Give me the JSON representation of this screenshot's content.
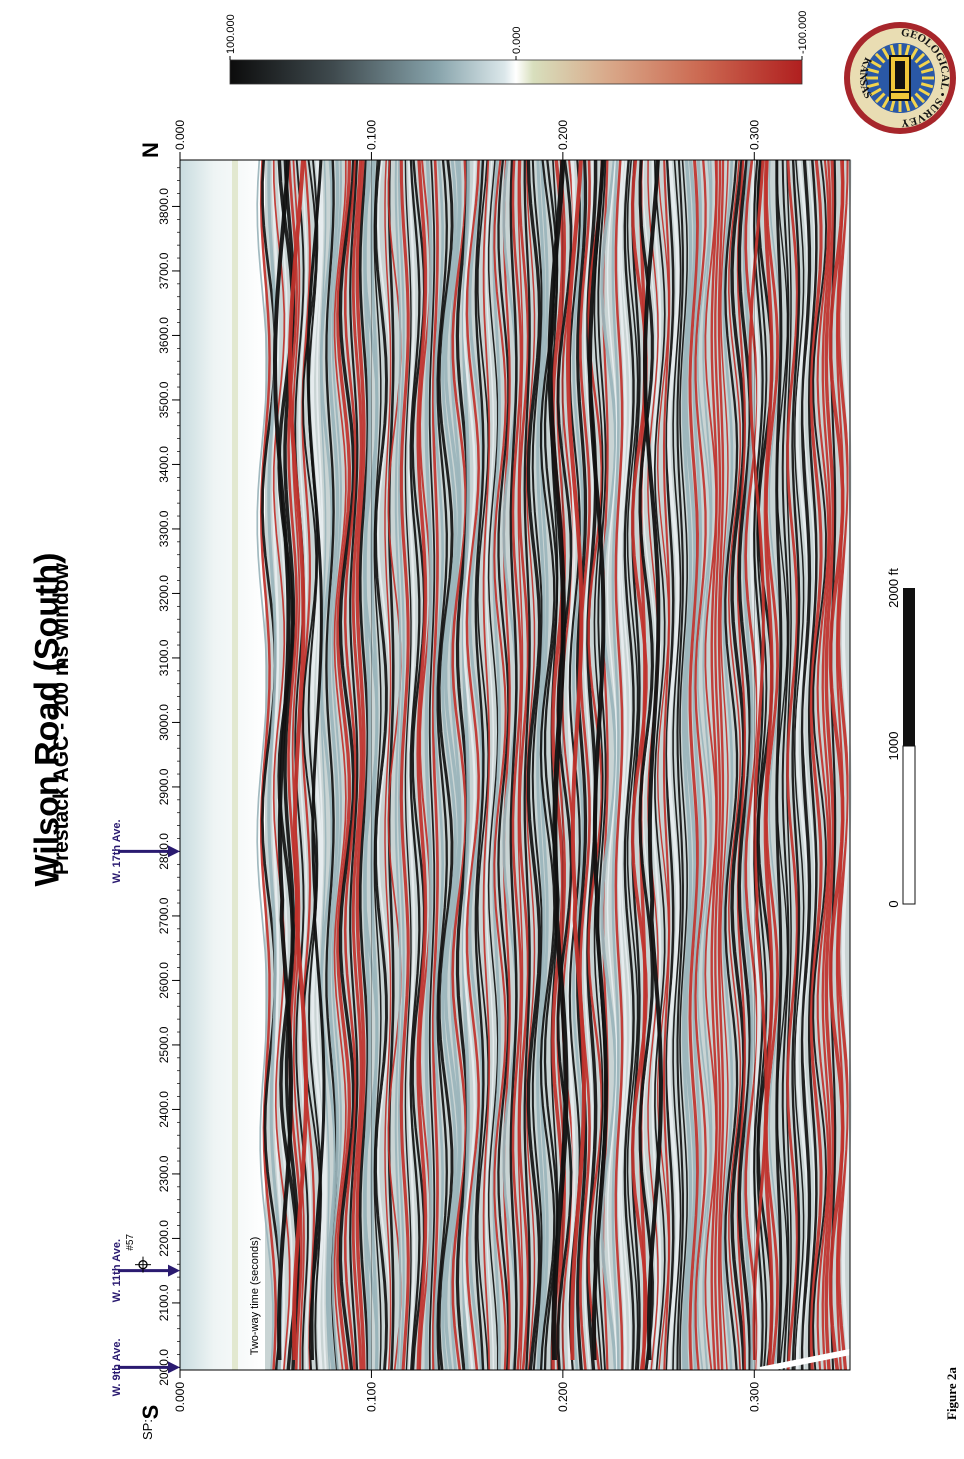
{
  "title": "Wilson Road (South)",
  "subtitle": "Prestack AGC - 200 ms window",
  "direction_labels": {
    "south": "S",
    "north": "N"
  },
  "sp_label": "SP:",
  "shotpoint_ticks": [
    "2000.0",
    "2100.0",
    "2200.0",
    "2300.0",
    "2400.0",
    "2500.0",
    "2600.0",
    "2700.0",
    "2800.0",
    "2900.0",
    "3000.0",
    "3100.0",
    "3200.0",
    "3300.0",
    "3400.0",
    "3500.0",
    "3600.0",
    "3700.0",
    "3800.0"
  ],
  "time_ticks": [
    "0.000",
    "0.100",
    "0.200",
    "0.300"
  ],
  "time_axis_label": "Two-way time (seconds)",
  "streets": [
    {
      "name": "W. 9th Ave.",
      "sp": 2000
    },
    {
      "name": "W. 11th Ave.",
      "sp": 2150
    },
    {
      "name": "W. 17th Ave.",
      "sp": 2800
    }
  ],
  "well": {
    "label": "#57",
    "sp": 2150
  },
  "colorbar": {
    "labels": [
      "100.000",
      "0.000",
      "-100.000"
    ],
    "negative_color": "#b32020",
    "zero_color": "#f0f4ee",
    "positive_color": "#101010"
  },
  "scale_bar": {
    "labels": [
      "0",
      "1000",
      "2000 ft"
    ]
  },
  "figure_label": "Figure 2a",
  "logo": {
    "text_top": "GEOLOGICAL • SURVEY",
    "text_bottom": "KANSAS"
  },
  "colors": {
    "accent": "#2a1a70",
    "trough": "#111111",
    "peak": "#c0312b",
    "mid": "#9ab4bb"
  }
}
